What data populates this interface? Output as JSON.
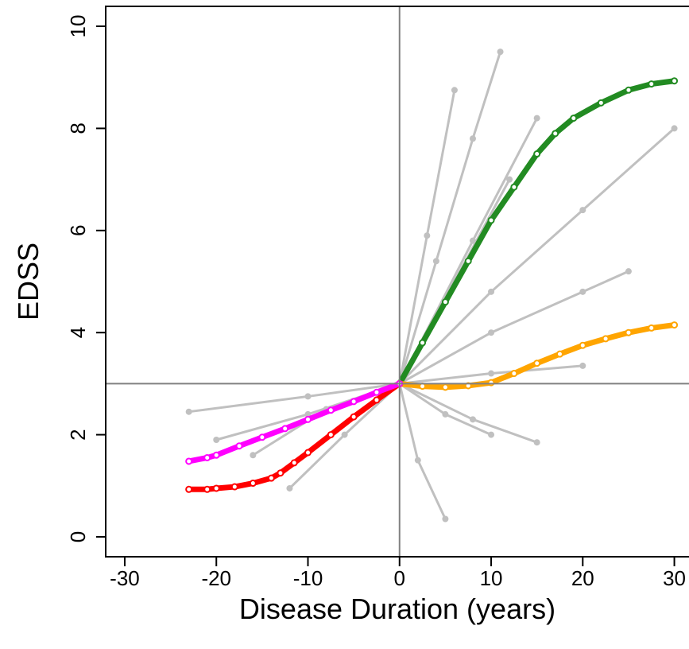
{
  "chart_data": {
    "type": "line",
    "xlabel": "Disease Duration (years)",
    "ylabel": "EDSS",
    "xlim": [
      -32.08,
      31.6
    ],
    "ylim": [
      -0.39,
      10.39
    ],
    "xticks": [
      -30,
      -20,
      -10,
      0,
      10,
      20,
      30
    ],
    "yticks": [
      0,
      2,
      4,
      6,
      8,
      10
    ],
    "hline": 3,
    "vline": 0,
    "series": [
      {
        "color": "#c0c0c0",
        "x": [
          0,
          4,
          8,
          11
        ],
        "values": [
          3,
          5.4,
          7.8,
          9.5
        ]
      },
      {
        "color": "#c0c0c0",
        "x": [
          0,
          3,
          6
        ],
        "values": [
          3,
          5.9,
          8.75
        ]
      },
      {
        "color": "#c0c0c0",
        "x": [
          0,
          10,
          20,
          30
        ],
        "values": [
          3,
          4.8,
          6.4,
          8.0
        ]
      },
      {
        "color": "#c0c0c0",
        "x": [
          0,
          8,
          15
        ],
        "values": [
          3,
          5.8,
          8.2
        ]
      },
      {
        "color": "#c0c0c0",
        "x": [
          0,
          10,
          20,
          25
        ],
        "values": [
          3,
          4.0,
          4.8,
          5.2
        ]
      },
      {
        "color": "#c0c0c0",
        "x": [
          0,
          10,
          20
        ],
        "values": [
          3,
          3.2,
          3.35
        ]
      },
      {
        "color": "#c0c0c0",
        "x": [
          0,
          2,
          5
        ],
        "values": [
          3,
          1.5,
          0.35
        ]
      },
      {
        "color": "#c0c0c0",
        "x": [
          0,
          8,
          15
        ],
        "values": [
          3,
          2.3,
          1.85
        ]
      },
      {
        "color": "#c0c0c0",
        "x": [
          0,
          5,
          10
        ],
        "values": [
          3,
          2.4,
          2.0
        ]
      },
      {
        "color": "#c0c0c0",
        "x": [
          0,
          6,
          12
        ],
        "values": [
          3,
          5.0,
          7.0
        ]
      },
      {
        "color": "#c0c0c0",
        "x": [
          0,
          -10,
          -23
        ],
        "values": [
          3,
          2.75,
          2.45
        ]
      },
      {
        "color": "#c0c0c0",
        "x": [
          0,
          -10,
          -20
        ],
        "values": [
          3,
          2.4,
          1.9
        ]
      },
      {
        "color": "#c0c0c0",
        "x": [
          0,
          -6,
          -12
        ],
        "values": [
          3,
          2.0,
          0.95
        ]
      },
      {
        "color": "#c0c0c0",
        "x": [
          0,
          -8,
          -16
        ],
        "values": [
          3,
          2.5,
          1.6
        ]
      },
      {
        "color": "#228b22",
        "x": [
          0,
          2.5,
          5,
          7.5,
          10,
          12.5,
          15,
          17,
          19,
          22,
          25,
          27.5,
          30
        ],
        "values": [
          3,
          3.8,
          4.6,
          5.4,
          6.2,
          6.85,
          7.5,
          7.9,
          8.2,
          8.5,
          8.75,
          8.87,
          8.93
        ]
      },
      {
        "color": "#ffa500",
        "x": [
          0,
          2.5,
          5,
          7.5,
          10,
          12.5,
          15,
          17.5,
          20,
          22.5,
          25,
          27.5,
          30
        ],
        "values": [
          3,
          2.95,
          2.93,
          2.96,
          3.02,
          3.2,
          3.4,
          3.58,
          3.75,
          3.88,
          4.0,
          4.09,
          4.15
        ]
      },
      {
        "color": "#ff0000",
        "x": [
          -23,
          -21,
          -20,
          -18,
          -16,
          -14,
          -13,
          -11.5,
          -10,
          -7.5,
          -5,
          -2.5,
          0
        ],
        "values": [
          0.93,
          0.93,
          0.95,
          0.98,
          1.05,
          1.15,
          1.25,
          1.45,
          1.65,
          2.0,
          2.35,
          2.68,
          3
        ]
      },
      {
        "color": "#ff00ff",
        "x": [
          -23,
          -21,
          -20,
          -17.5,
          -15,
          -12.5,
          -10,
          -7.5,
          -5,
          -2.5,
          0
        ],
        "values": [
          1.48,
          1.55,
          1.6,
          1.78,
          1.95,
          2.12,
          2.3,
          2.48,
          2.65,
          2.83,
          3
        ]
      }
    ]
  }
}
